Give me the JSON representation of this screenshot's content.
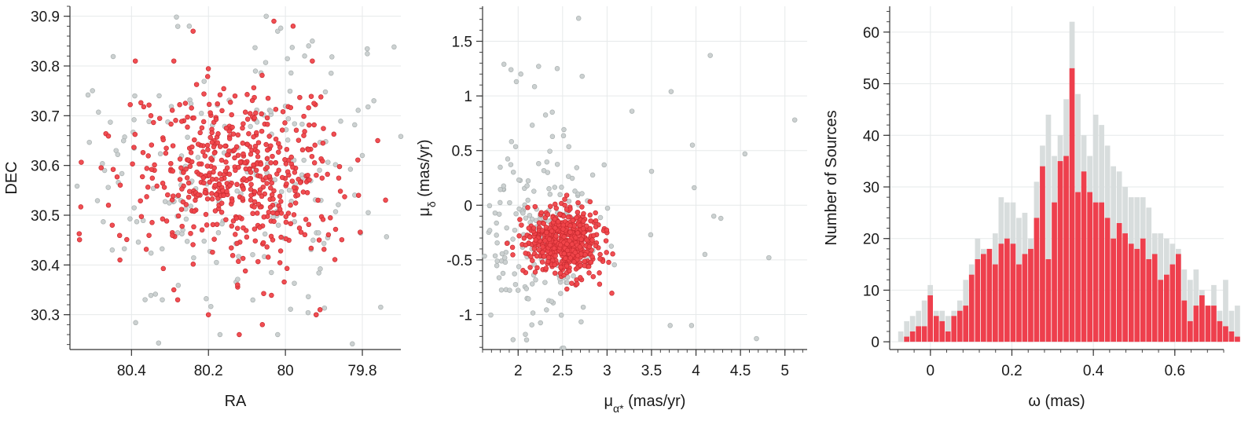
{
  "colors": {
    "member": "#f0444a",
    "member_edge": "#c92b30",
    "field": "#c9cfcf",
    "field_edge": "#a9b0b0",
    "hist_all": "#d8dddd",
    "hist_member": "#ee3f4d",
    "grid": "#e6e9ea",
    "axis": "#333333"
  },
  "chart_data": [
    {
      "type": "scatter",
      "xlabel": "RA",
      "ylabel": "DEC",
      "xlim": [
        80.56,
        79.7
      ],
      "ylim": [
        30.23,
        30.92
      ],
      "xticks": [
        80.4,
        80.2,
        80,
        79.8
      ],
      "xtick_labels": [
        "80.4",
        "80.2",
        "80",
        "79.8"
      ],
      "yticks": [
        30.3,
        30.4,
        30.5,
        30.6,
        30.7,
        30.8,
        30.9
      ],
      "ytick_labels": [
        "30.3",
        "30.4",
        "30.5",
        "30.6",
        "30.7",
        "30.8",
        "30.9"
      ],
      "grid": true,
      "series": [
        {
          "role": "field",
          "cloud": {
            "center": [
              80.13,
              30.58
            ],
            "spread": [
              0.24,
              0.16
            ],
            "count": 190,
            "seed": 11
          },
          "points": [
            [
              80.05,
              30.9
            ],
            [
              80.02,
              30.87
            ],
            [
              79.93,
              30.85
            ],
            [
              80.25,
              30.88
            ],
            [
              79.95,
              30.82
            ],
            [
              80.44,
              30.63
            ],
            [
              79.77,
              30.73
            ],
            [
              80.45,
              30.43
            ],
            [
              80.02,
              30.26
            ],
            [
              80.17,
              30.26
            ],
            [
              79.92,
              30.3
            ],
            [
              80.32,
              30.33
            ],
            [
              79.8,
              30.62
            ],
            [
              80.47,
              30.59
            ]
          ]
        },
        {
          "role": "member",
          "cloud": {
            "center": [
              80.13,
              30.58
            ],
            "spread": [
              0.13,
              0.085
            ],
            "count": 520,
            "seed": 7
          },
          "points": [
            [
              80.03,
              30.89
            ],
            [
              79.98,
              30.88
            ],
            [
              80.29,
              30.81
            ],
            [
              80.39,
              30.81
            ],
            [
              80.24,
              30.87
            ],
            [
              79.93,
              30.81
            ],
            [
              80.12,
              30.26
            ],
            [
              80.06,
              30.28
            ],
            [
              79.91,
              30.31
            ],
            [
              79.92,
              30.3
            ],
            [
              80.28,
              30.33
            ],
            [
              80.29,
              30.35
            ],
            [
              79.76,
              30.65
            ],
            [
              80.43,
              30.41
            ],
            [
              80.45,
              30.48
            ],
            [
              80.46,
              30.52
            ],
            [
              79.81,
              30.54
            ],
            [
              80.2,
              30.3
            ]
          ]
        }
      ]
    },
    {
      "type": "scatter",
      "xlabel": "μα* (mas/yr)",
      "xlabel_main": "μ",
      "xlabel_sub": "α*",
      "xlabel_rest": " (mas/yr)",
      "ylabel": "μδ (mas/yr)",
      "ylabel_main": "μ",
      "ylabel_sub": "δ",
      "ylabel_rest": " (mas/yr)",
      "xlim": [
        1.6,
        5.25
      ],
      "ylim": [
        -1.32,
        1.82
      ],
      "xticks": [
        2,
        2.5,
        3,
        3.5,
        4,
        4.5,
        5
      ],
      "xtick_labels": [
        "2",
        "2.5",
        "3",
        "3.5",
        "4",
        "4.5",
        "5"
      ],
      "yticks": [
        -1,
        -0.5,
        0,
        0.5,
        1,
        1.5
      ],
      "ytick_labels": [
        "-1",
        "-0.5",
        "0",
        "0.5",
        "1",
        "1.5"
      ],
      "grid": true,
      "series": [
        {
          "role": "field",
          "cloud": {
            "center": [
              2.2,
              -0.3
            ],
            "spread": [
              0.35,
              0.45
            ],
            "count": 190,
            "seed": 23
          },
          "points": [
            [
              2.68,
              1.71
            ],
            [
              5.11,
              0.78
            ],
            [
              4.16,
              1.37
            ],
            [
              3.72,
              1.04
            ],
            [
              3.28,
              0.86
            ],
            [
              4.82,
              -0.48
            ],
            [
              4.68,
              -1.22
            ],
            [
              3.96,
              0.55
            ],
            [
              4.55,
              0.47
            ],
            [
              4.2,
              -0.1
            ],
            [
              4.28,
              -0.12
            ],
            [
              3.98,
              0.16
            ],
            [
              4.1,
              -0.45
            ],
            [
              3.95,
              -1.1
            ],
            [
              3.71,
              -1.1
            ],
            [
              3.49,
              -0.27
            ],
            [
              3.5,
              0.31
            ],
            [
              1.84,
              1.29
            ],
            [
              1.92,
              1.24
            ],
            [
              2.23,
              1.27
            ],
            [
              2.44,
              1.25
            ],
            [
              2.72,
              1.18
            ],
            [
              1.98,
              1.13
            ],
            [
              2.03,
              1.2
            ]
          ]
        },
        {
          "role": "member",
          "cloud": {
            "center": [
              2.52,
              -0.34
            ],
            "spread": [
              0.2,
              0.15
            ],
            "count": 520,
            "seed": 5
          },
          "points": []
        }
      ]
    },
    {
      "type": "bar",
      "xlabel": "ω (mas)",
      "ylabel": "Number of Sources",
      "xlim": [
        -0.1,
        0.72
      ],
      "ylim": [
        -1.5,
        65
      ],
      "bin_start": -0.08,
      "bin_width": 0.0145,
      "xticks": [
        0,
        0.2,
        0.4,
        0.6
      ],
      "xtick_labels": [
        "0",
        "0.2",
        "0.4",
        "0.6"
      ],
      "yticks": [
        0,
        10,
        20,
        30,
        40,
        50,
        60
      ],
      "ytick_labels": [
        "0",
        "10",
        "20",
        "30",
        "40",
        "50",
        "60"
      ],
      "grid": true,
      "series": [
        {
          "name": "",
          "role": "all",
          "values": [
            2,
            4,
            5,
            6,
            8,
            11,
            6,
            6,
            5,
            6,
            8,
            12,
            15,
            20,
            18,
            18,
            21,
            28,
            27,
            27,
            24,
            25,
            20,
            31,
            38,
            44,
            36,
            40,
            47,
            62,
            48,
            40,
            36,
            44,
            42,
            38,
            34,
            33,
            30,
            28,
            28,
            28,
            26,
            21,
            21,
            20,
            19,
            18,
            14,
            12,
            14,
            10,
            7,
            11,
            6,
            12,
            6,
            7
          ]
        },
        {
          "name": "",
          "role": "member",
          "values": [
            0,
            1,
            2,
            3,
            3,
            9,
            5,
            4,
            2,
            5,
            6,
            7,
            13,
            16,
            17,
            18,
            15,
            19,
            20,
            19,
            15,
            17,
            18,
            24,
            34,
            16,
            27,
            35,
            36,
            53,
            29,
            33,
            29,
            27,
            27,
            24,
            20,
            23,
            21,
            19,
            18,
            20,
            16,
            17,
            12,
            13,
            15,
            17,
            8,
            4,
            7,
            9,
            7,
            7,
            4,
            3,
            2,
            1
          ]
        }
      ]
    }
  ]
}
